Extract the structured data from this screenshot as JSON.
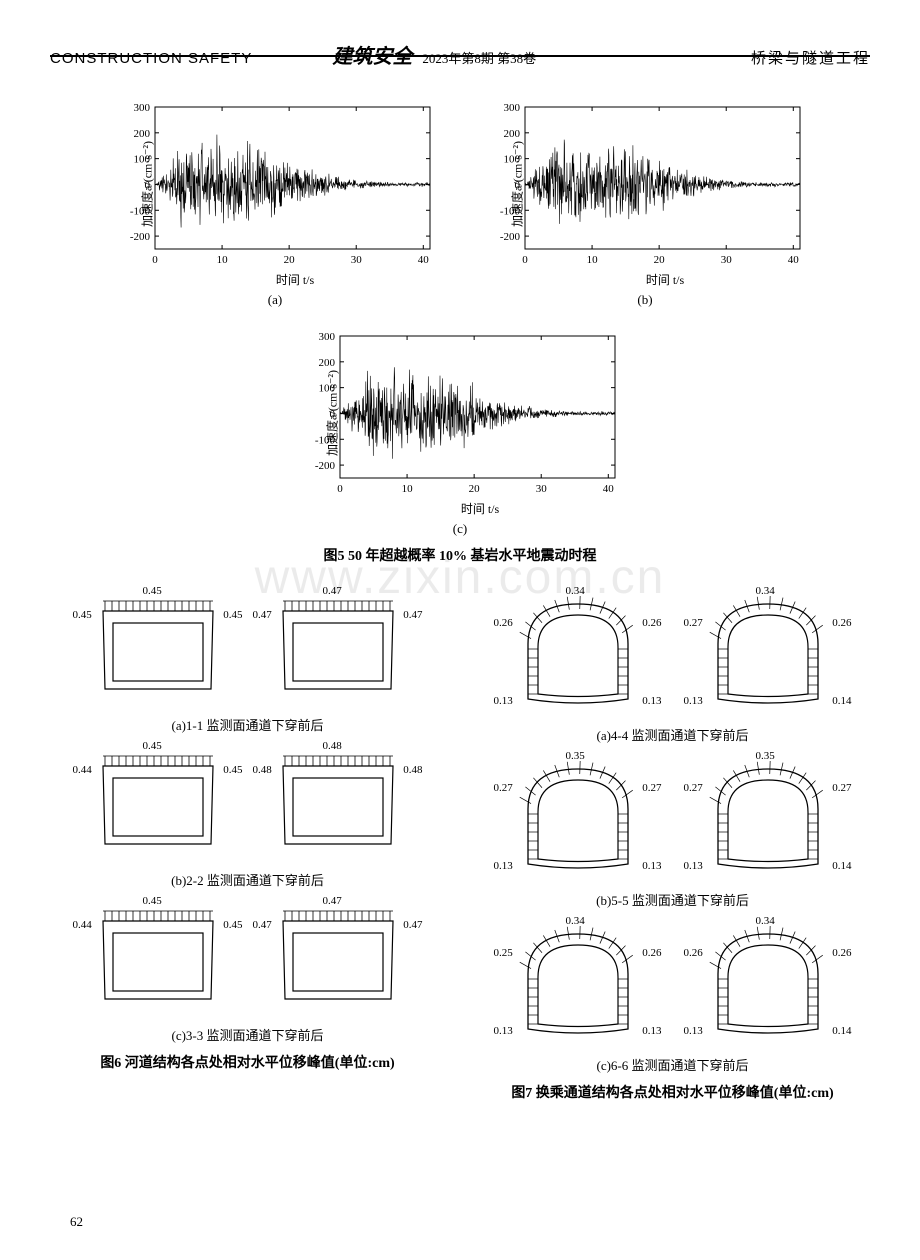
{
  "header": {
    "left": "CONSTRUCTION SAFETY",
    "mid_calligraphy": "建筑安全",
    "issue": "2023年第8期  第38卷",
    "right": "桥梁与隧道工程"
  },
  "seismic": {
    "ylabel": "加速度a/(cm·s⁻²)",
    "xlabel": "时间 t/s",
    "sub_a": "(a)",
    "sub_b": "(b)",
    "sub_c": "(c)",
    "yticks": [
      -200,
      -100,
      0,
      100,
      200,
      300
    ],
    "xticks": [
      0,
      10,
      20,
      30,
      40
    ],
    "ylim": [
      -250,
      300
    ],
    "xlim": [
      0,
      41
    ],
    "line_color": "#000000",
    "axis_color": "#000000",
    "tick_fontsize": 11
  },
  "fig5_caption": "图5  50 年超越概率 10% 基岩水平地震动时程",
  "fig6": {
    "caption": "图6  河道结构各点处相对水平位移峰值(单位:cm)",
    "rows": [
      {
        "sub": "(a)1-1 监测面通道下穿前后",
        "L": {
          "top": "0.45",
          "tl": "0.45",
          "tr": "0.45"
        },
        "R": {
          "top": "0.47",
          "tl": "0.47",
          "tr": "0.47"
        }
      },
      {
        "sub": "(b)2-2 监测面通道下穿前后",
        "L": {
          "top": "0.45",
          "tl": "0.44",
          "tr": "0.45"
        },
        "R": {
          "top": "0.48",
          "tl": "0.48",
          "tr": "0.48"
        }
      },
      {
        "sub": "(c)3-3 监测面通道下穿前后",
        "L": {
          "top": "0.45",
          "tl": "0.44",
          "tr": "0.45"
        },
        "R": {
          "top": "0.47",
          "tl": "0.47",
          "tr": "0.47"
        }
      }
    ]
  },
  "fig7": {
    "caption": "图7  换乘通道结构各点处相对水平位移峰值(单位:cm)",
    "rows": [
      {
        "sub": "(a)4-4 监测面通道下穿前后",
        "L": {
          "top": "0.34",
          "tl": "0.26",
          "tr": "0.26",
          "bl": "0.13",
          "br": "0.13"
        },
        "R": {
          "top": "0.34",
          "tl": "0.27",
          "tr": "0.26",
          "bl": "0.13",
          "br": "0.14"
        }
      },
      {
        "sub": "(b)5-5 监测面通道下穿前后",
        "L": {
          "top": "0.35",
          "tl": "0.27",
          "tr": "0.27",
          "bl": "0.13",
          "br": "0.13"
        },
        "R": {
          "top": "0.35",
          "tl": "0.27",
          "tr": "0.27",
          "bl": "0.13",
          "br": "0.14"
        }
      },
      {
        "sub": "(c)6-6 监测面通道下穿前后",
        "L": {
          "top": "0.34",
          "tl": "0.25",
          "tr": "0.26",
          "bl": "0.13",
          "br": "0.13"
        },
        "R": {
          "top": "0.34",
          "tl": "0.26",
          "tr": "0.26",
          "bl": "0.13",
          "br": "0.14"
        }
      }
    ]
  },
  "watermark": "www.zixin.com.cn",
  "page_number": "62",
  "diagram_style": {
    "stroke": "#000000",
    "fill": "#ffffff"
  }
}
